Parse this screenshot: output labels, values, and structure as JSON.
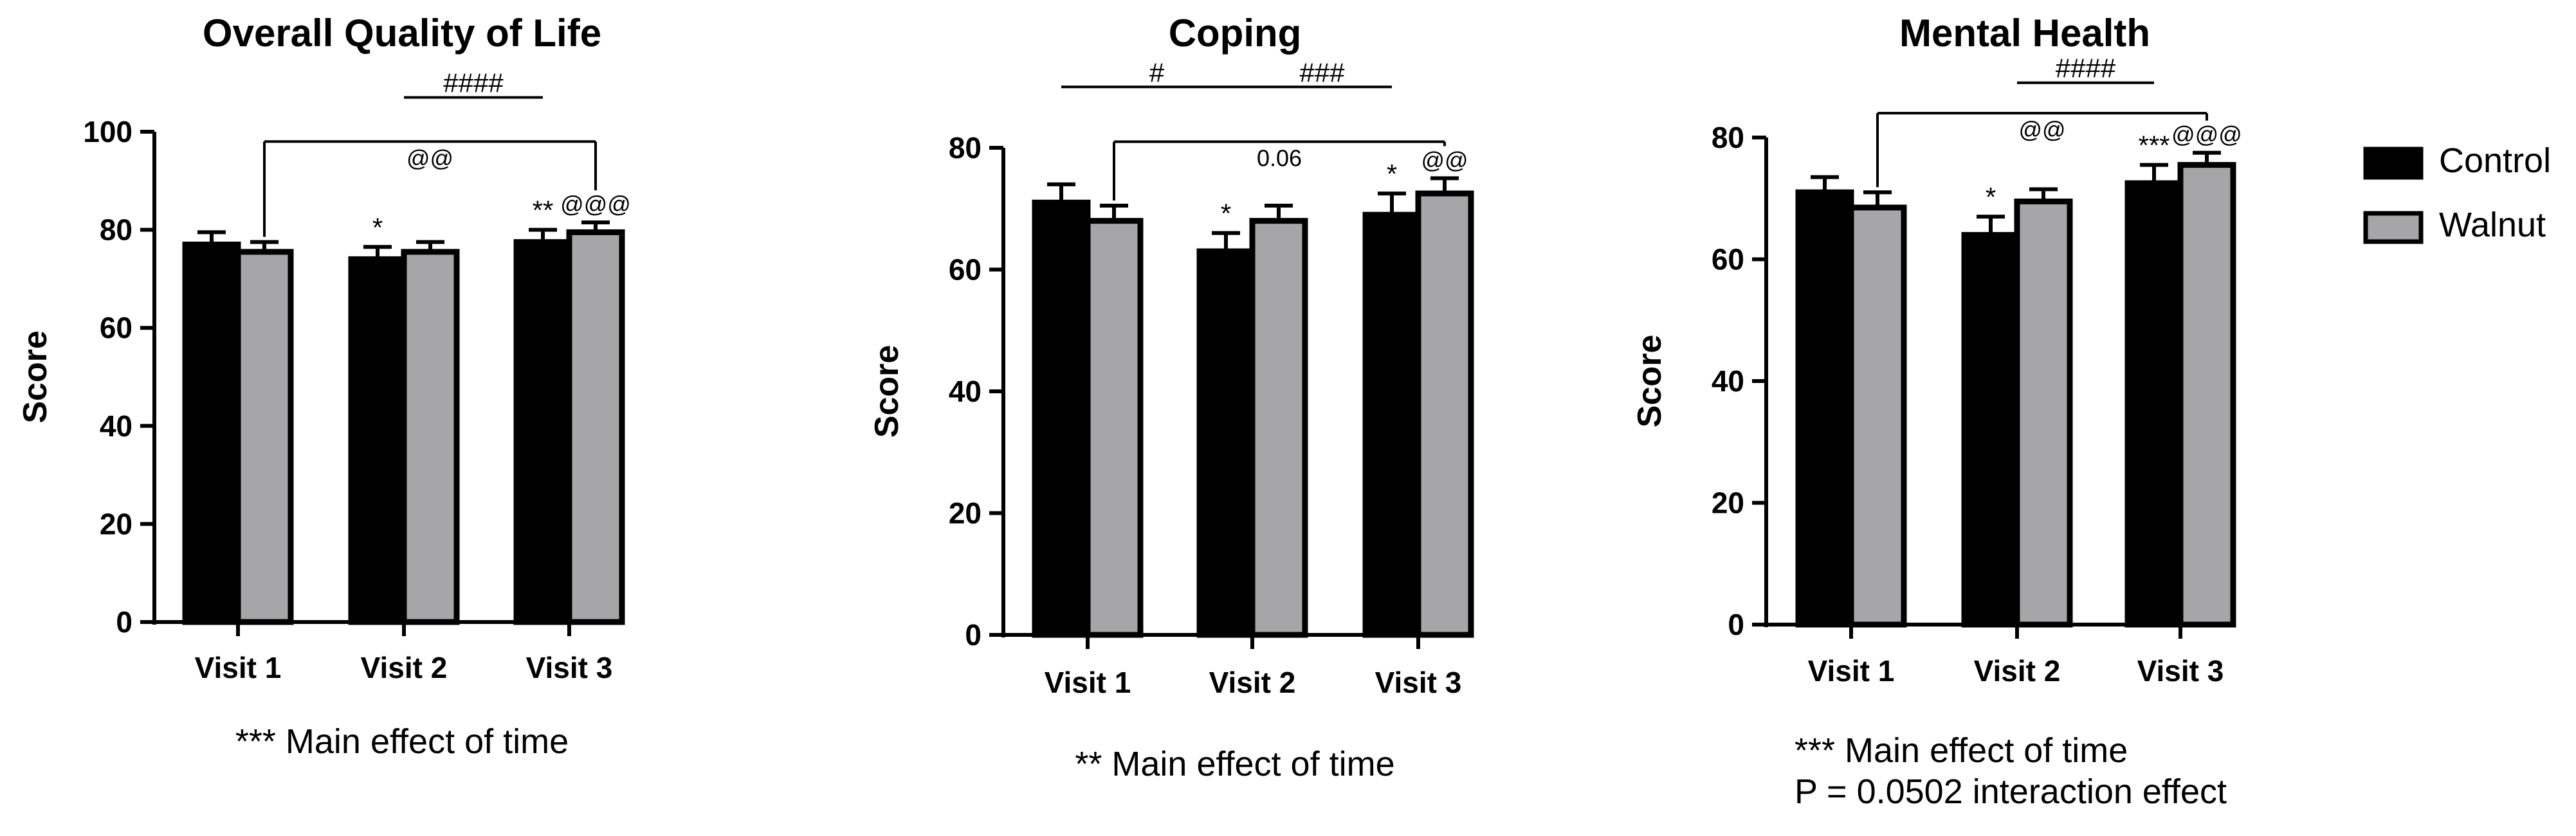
{
  "legend": [
    {
      "name": "Control",
      "color": "#000000"
    },
    {
      "name": "Walnut",
      "color": "#a6a6a8"
    }
  ],
  "chart_data": [
    {
      "type": "bar",
      "title": "Overall Quality of Life",
      "ylabel": "Score",
      "xlabel": "",
      "ylim": [
        0,
        100
      ],
      "yticks": [
        "0",
        "20",
        "40",
        "60",
        "80",
        "100"
      ],
      "categories": [
        "Visit 1",
        "Visit 2",
        "Visit 3"
      ],
      "series": [
        {
          "name": "Control",
          "values": [
            77,
            74,
            77.5
          ],
          "errors": [
            2.5,
            2.5,
            2.5
          ]
        },
        {
          "name": "Walnut",
          "values": [
            75.5,
            75.5,
            79.5
          ],
          "errors": [
            2,
            2,
            2
          ]
        }
      ],
      "bar_annotations": [
        {
          "category": 1,
          "series": 0,
          "text": "*"
        },
        {
          "category": 2,
          "series": 0,
          "text": "**"
        },
        {
          "category": 2,
          "series": 1,
          "text": "@@@"
        }
      ],
      "brackets": [
        {
          "text": "@@",
          "from": [
            0,
            1
          ],
          "to": [
            2,
            1
          ],
          "y": 98
        },
        {
          "text": "####",
          "from": [
            1,
            0.5
          ],
          "to": [
            2,
            0
          ],
          "y": 107,
          "line_only": true
        }
      ],
      "footnote": [
        "*** Main effect of time"
      ]
    },
    {
      "type": "bar",
      "title": "Coping",
      "ylabel": "Score",
      "xlabel": "",
      "ylim": [
        0,
        80
      ],
      "yticks": [
        "0",
        "20",
        "40",
        "60",
        "80"
      ],
      "categories": [
        "Visit 1",
        "Visit 2",
        "Visit 3"
      ],
      "series": [
        {
          "name": "Control",
          "values": [
            71,
            63,
            69
          ],
          "errors": [
            3,
            3,
            3.5
          ]
        },
        {
          "name": "Walnut",
          "values": [
            68,
            68,
            72.5
          ],
          "errors": [
            2.5,
            2.5,
            2.5
          ]
        }
      ],
      "bar_annotations": [
        {
          "category": 1,
          "series": 0,
          "text": "*"
        },
        {
          "category": 2,
          "series": 0,
          "text": "*"
        },
        {
          "category": 2,
          "series": 1,
          "text": "@@"
        }
      ],
      "brackets": [
        {
          "text": "0.06",
          "from": [
            0,
            1
          ],
          "to": [
            2,
            1
          ],
          "y": 81
        },
        {
          "text": "#",
          "from": [
            0,
            0
          ],
          "to": [
            1,
            0.5
          ],
          "y": 90,
          "line_only": true
        },
        {
          "text": "###",
          "from": [
            1,
            0.5
          ],
          "to": [
            2,
            0
          ],
          "y": 90,
          "line_only": true
        }
      ],
      "footnote": [
        "** Main effect of time"
      ]
    },
    {
      "type": "bar",
      "title": "Mental  Health",
      "ylabel": "Score",
      "xlabel": "",
      "ylim": [
        0,
        80
      ],
      "yticks": [
        "0",
        "20",
        "40",
        "60",
        "80"
      ],
      "categories": [
        "Visit 1",
        "Visit 2",
        "Visit 3"
      ],
      "series": [
        {
          "name": "Control",
          "values": [
            71,
            64,
            72.5
          ],
          "errors": [
            2.5,
            3,
            3
          ]
        },
        {
          "name": "Walnut",
          "values": [
            68.5,
            69.5,
            75.5
          ],
          "errors": [
            2.5,
            2,
            2
          ]
        }
      ],
      "bar_annotations": [
        {
          "category": 1,
          "series": 0,
          "text": "*"
        },
        {
          "category": 2,
          "series": 0,
          "text": "***"
        },
        {
          "category": 2,
          "series": 1,
          "text": "@@@"
        }
      ],
      "brackets": [
        {
          "text": "@@",
          "from": [
            0,
            1
          ],
          "to": [
            2,
            1
          ],
          "y": 84
        },
        {
          "text": "####",
          "from": [
            1,
            0.5
          ],
          "to": [
            2,
            0
          ],
          "y": 89,
          "line_only": true
        }
      ],
      "footnote": [
        "*** Main effect of time",
        "P = 0.0502 interaction effect"
      ]
    }
  ]
}
